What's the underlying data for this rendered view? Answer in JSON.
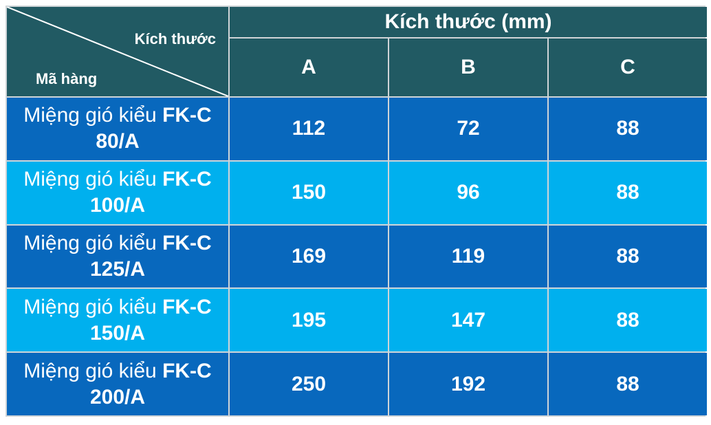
{
  "header": {
    "corner_top": "Kích thước",
    "corner_bottom": "Mã hàng",
    "group_title": "Kích thước (mm)",
    "columns": [
      "A",
      "B",
      "C"
    ]
  },
  "rows": [
    {
      "prefix": "Miệng gió kiểu",
      "model": "FK-C",
      "size": "80/A",
      "A": "112",
      "B": "72",
      "C": "88"
    },
    {
      "prefix": "Miệng gió kiểu",
      "model": "FK-C",
      "size": "100/A",
      "A": "150",
      "B": "96",
      "C": "88"
    },
    {
      "prefix": "Miệng gió kiểu",
      "model": "FK-C",
      "size": "125/A",
      "A": "169",
      "B": "119",
      "C": "88"
    },
    {
      "prefix": "Miệng gió kiểu",
      "model": "FK-C",
      "size": "150/A",
      "A": "195",
      "B": "147",
      "C": "88"
    },
    {
      "prefix": "Miệng gió kiểu",
      "model": "FK-C",
      "size": "200/A",
      "A": "250",
      "B": "192",
      "C": "88"
    }
  ],
  "colors": {
    "header": "#215a63",
    "row_dark": "#0868bd",
    "row_light": "#00b0ee"
  }
}
